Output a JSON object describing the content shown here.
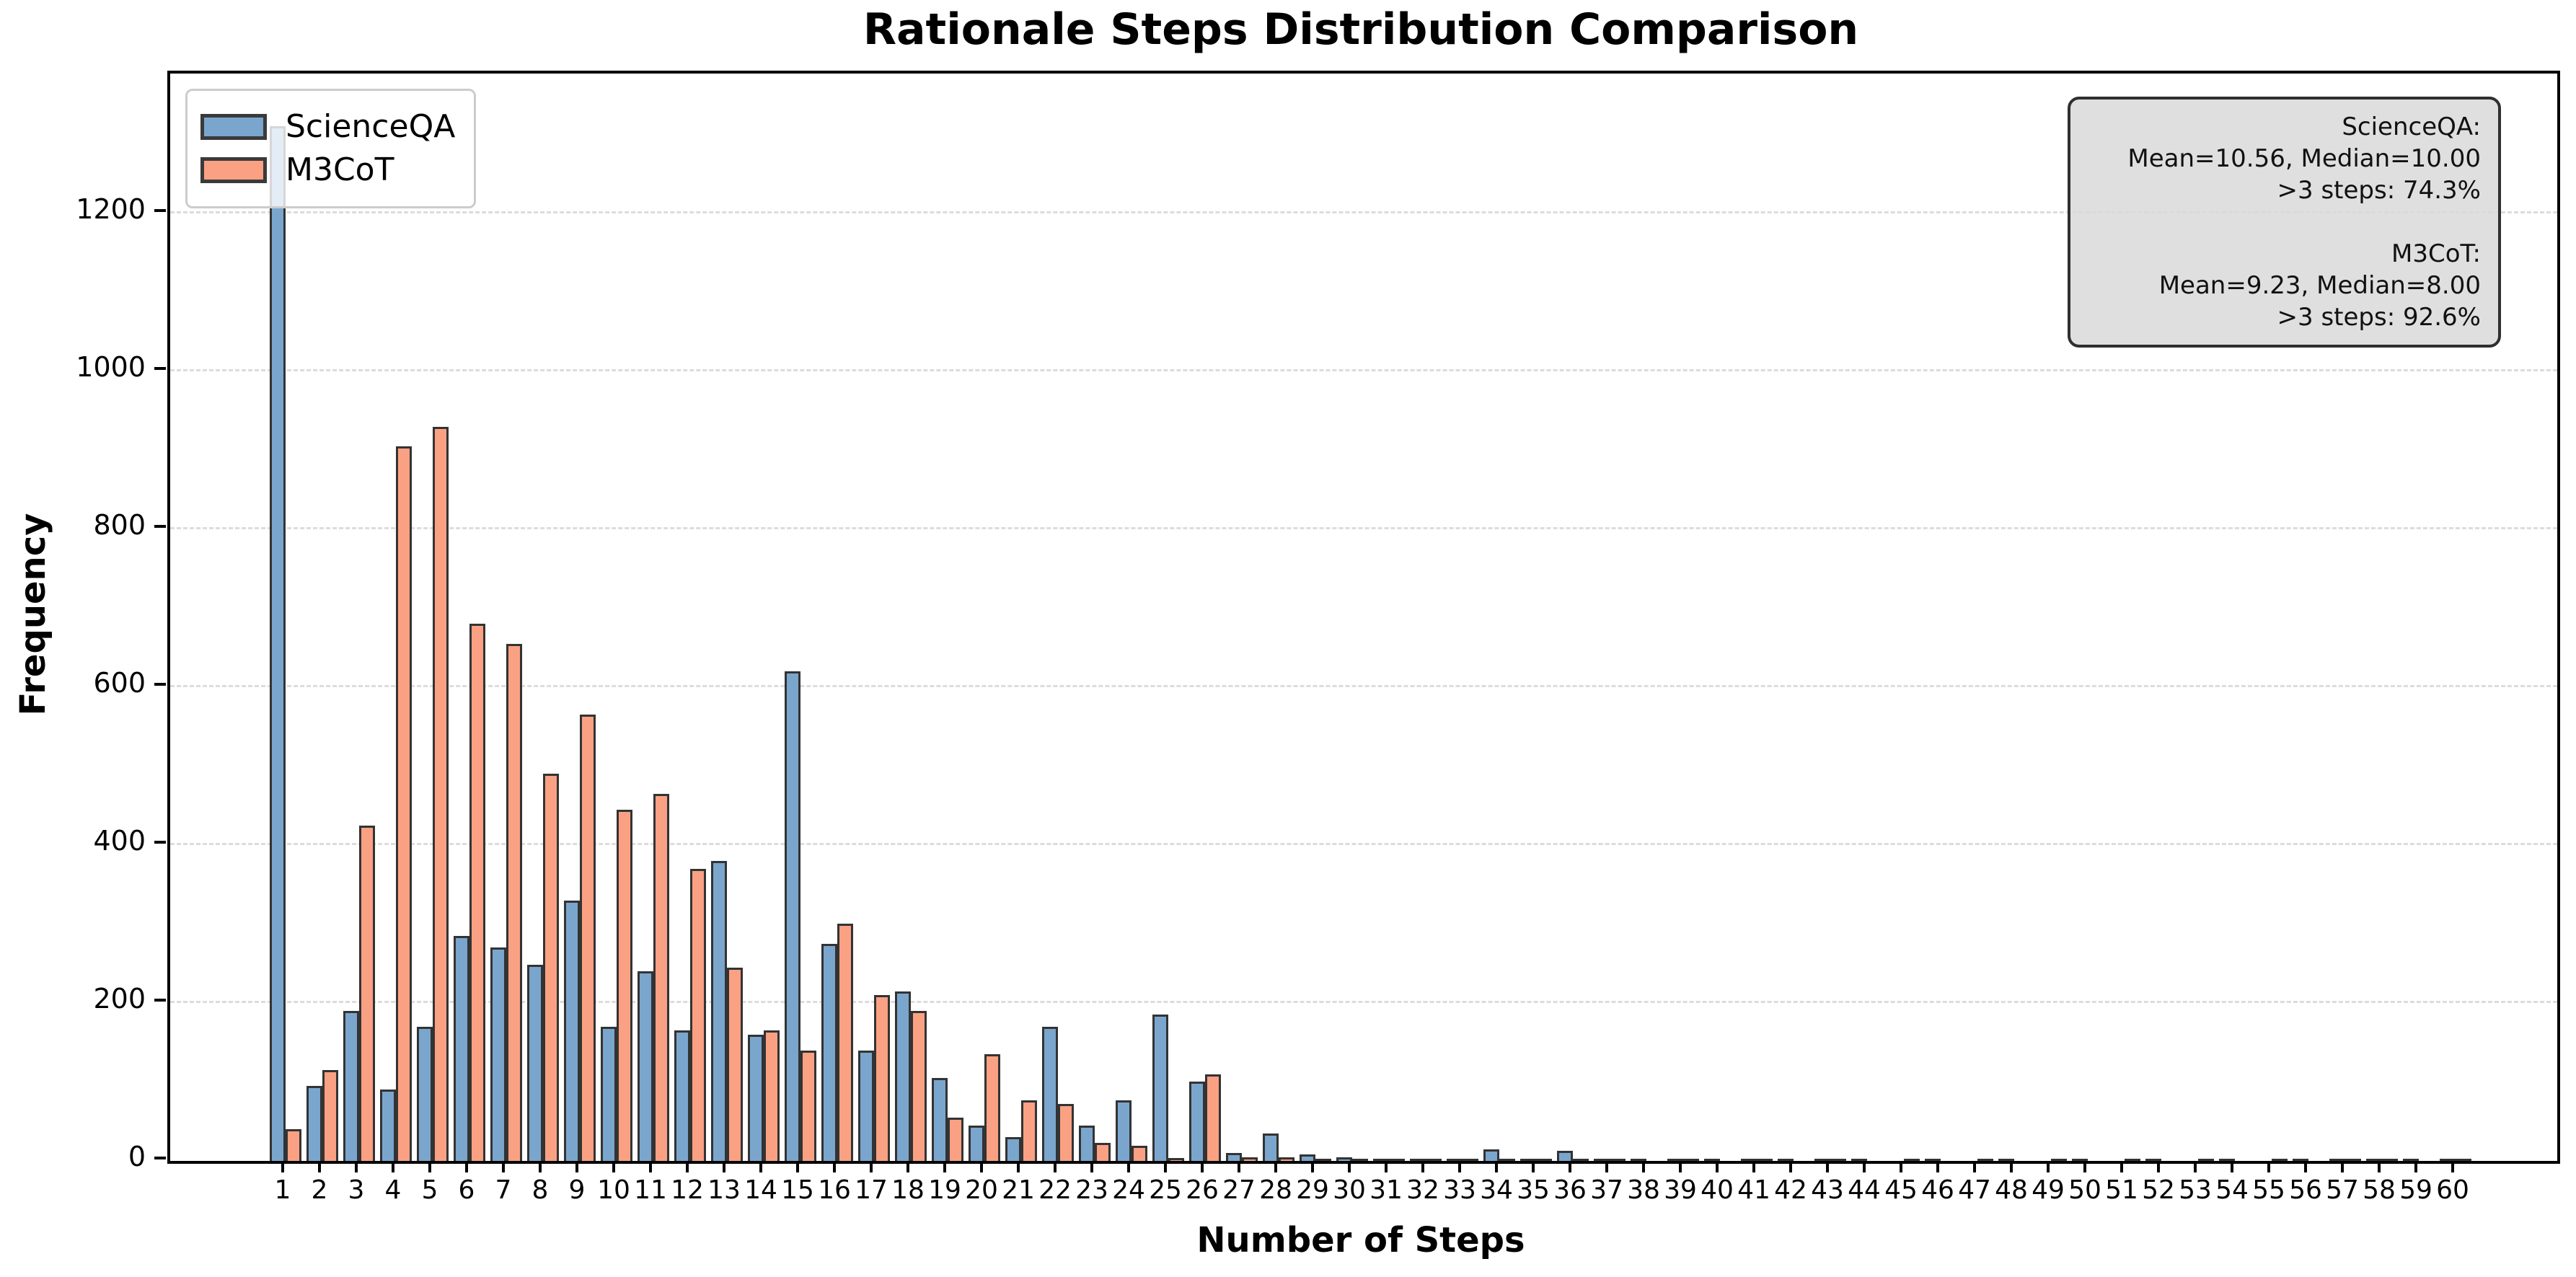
{
  "chart_data": {
    "type": "bar",
    "title": "Rationale Steps Distribution Comparison",
    "xlabel": "Number of Steps",
    "ylabel": "Frequency",
    "grid": "horizontal-dashed",
    "grid_color": "#dcdcdc",
    "edge_color": "#333333",
    "legend_position": "upper left",
    "ylim": [
      0,
      1377
    ],
    "yticks": [
      0,
      200,
      400,
      600,
      800,
      1000,
      1200
    ],
    "categories": [
      1,
      2,
      3,
      4,
      5,
      6,
      7,
      8,
      9,
      10,
      11,
      12,
      13,
      14,
      15,
      16,
      17,
      18,
      19,
      20,
      21,
      22,
      23,
      24,
      25,
      26,
      27,
      28,
      29,
      30,
      31,
      32,
      33,
      34,
      35,
      36,
      37,
      38,
      39,
      40,
      41,
      42,
      43,
      44,
      45,
      46,
      47,
      48,
      49,
      50,
      51,
      52,
      53,
      54,
      55,
      56,
      57,
      58,
      59,
      60
    ],
    "series": [
      {
        "name": "ScienceQA",
        "fill": "#7AA6CD",
        "values": [
          1310,
          95,
          190,
          90,
          170,
          285,
          270,
          248,
          330,
          170,
          240,
          165,
          380,
          160,
          620,
          275,
          140,
          215,
          105,
          45,
          30,
          170,
          45,
          77,
          185,
          100,
          10,
          35,
          8,
          5,
          3,
          2,
          2,
          15,
          2,
          13,
          2,
          1,
          1,
          2,
          1,
          1,
          1,
          1,
          0,
          1,
          0,
          1,
          0,
          1,
          0,
          1,
          0,
          1,
          0,
          1,
          1,
          2,
          1,
          1
        ]
      },
      {
        "name": "M3CoT",
        "fill": "#FBA183",
        "values": [
          40,
          115,
          425,
          905,
          930,
          680,
          655,
          490,
          565,
          445,
          465,
          370,
          245,
          165,
          140,
          300,
          210,
          190,
          55,
          135,
          77,
          72,
          23,
          19,
          4,
          110,
          5,
          5,
          2,
          2,
          1,
          1,
          1,
          1,
          1,
          1,
          1,
          0,
          1,
          0,
          1,
          0,
          1,
          0,
          1,
          0,
          1,
          0,
          1,
          0,
          1,
          0,
          1,
          0,
          1,
          0,
          1,
          1,
          0,
          1
        ]
      }
    ],
    "annotation": {
      "lines": [
        "ScienceQA:",
        "Mean=10.56, Median=10.00",
        ">3 steps: 74.3%",
        "",
        "M3CoT:",
        "Mean=9.23, Median=8.00",
        ">3 steps: 92.6%"
      ],
      "bg": "#d9d9d9",
      "border": "#2f2f2f"
    }
  }
}
